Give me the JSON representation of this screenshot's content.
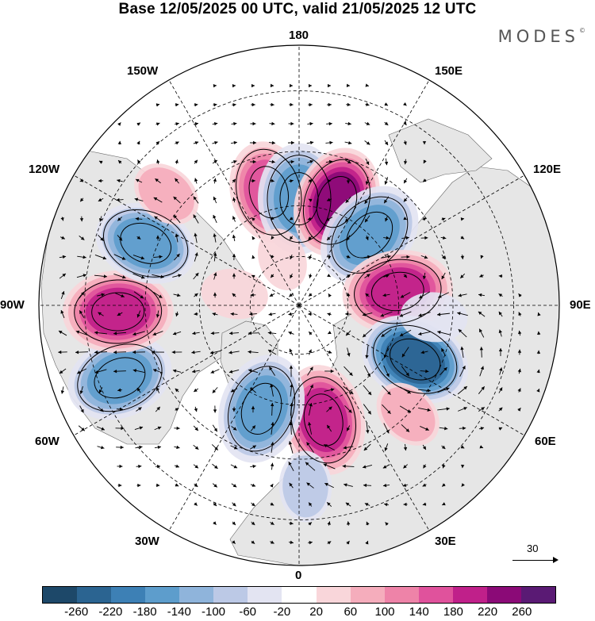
{
  "title": "Base 12/05/2025 00 UTC, valid 21/05/2025 12 UTC",
  "brand": "MODES",
  "brand_mark": "©",
  "longitude_labels": {
    "n180": "180",
    "w150": "150W",
    "e150": "150E",
    "w120": "120W",
    "e120": "120E",
    "w90": "90W",
    "e90": "90E",
    "w60": "60W",
    "e60": "60E",
    "w30": "30W",
    "e30": "30E",
    "s0": "0"
  },
  "vector_scale": "30",
  "colorbar": {
    "ticks": [
      "-260",
      "-220",
      "-180",
      "-140",
      "-100",
      "-60",
      "-20",
      "20",
      "60",
      "100",
      "140",
      "180",
      "220",
      "260"
    ],
    "colors": [
      "#1d4869",
      "#2b6491",
      "#3d80b5",
      "#5d9dcc",
      "#8fb4db",
      "#bcc9e6",
      "#e3e4f2",
      "#ffffff",
      "#f9d6da",
      "#f5adbc",
      "#ee83a8",
      "#e0529c",
      "#c0208a",
      "#8b0a77",
      "#5a1a74"
    ]
  },
  "colors": {
    "land": "#e6e6e6",
    "ocean": "#ffffff",
    "grid": "#000000"
  },
  "anomalies": [
    {
      "lat": 55,
      "lon": -165,
      "value": 140
    },
    {
      "lat": 58,
      "lon": -180,
      "value": -170
    },
    {
      "lat": 57,
      "lon": 160,
      "value": 230
    },
    {
      "lat": 60,
      "lon": 135,
      "value": -160
    },
    {
      "lat": 60,
      "lon": 98,
      "value": 200
    },
    {
      "lat": 52,
      "lon": 65,
      "value": -230
    },
    {
      "lat": 55,
      "lon": 12,
      "value": 200
    },
    {
      "lat": 57,
      "lon": -20,
      "value": -160
    },
    {
      "lat": 35,
      "lon": -68,
      "value": -150
    },
    {
      "lat": 38,
      "lon": -88,
      "value": 190
    },
    {
      "lat": 42,
      "lon": -112,
      "value": -140
    },
    {
      "lat": 38,
      "lon": 2,
      "value": -60
    },
    {
      "lat": 70,
      "lon": -100,
      "value": 50
    },
    {
      "lat": 50,
      "lon": 85,
      "value": -50
    },
    {
      "lat": 45,
      "lon": 45,
      "value": 60
    },
    {
      "lat": 40,
      "lon": -130,
      "value": 60
    },
    {
      "lat": 75,
      "lon": -160,
      "value": 40
    }
  ]
}
